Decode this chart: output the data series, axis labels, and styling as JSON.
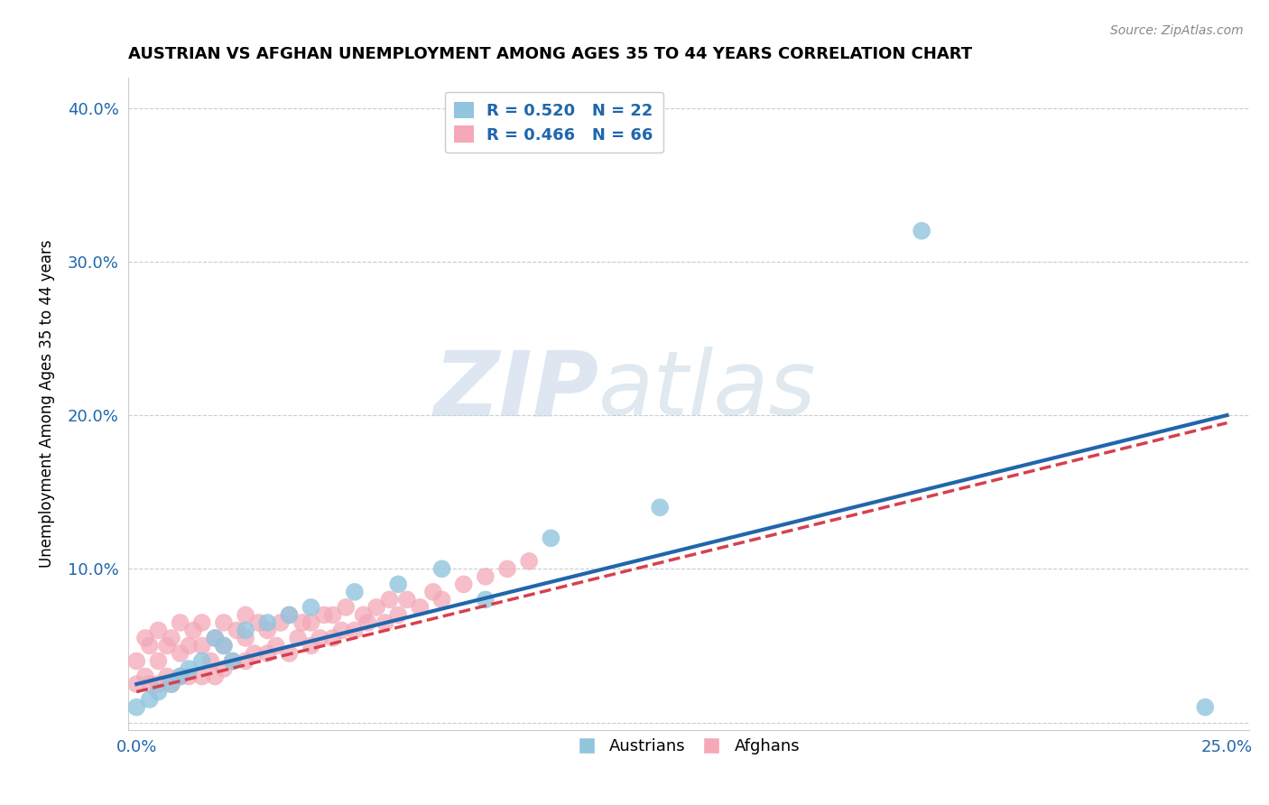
{
  "title": "AUSTRIAN VS AFGHAN UNEMPLOYMENT AMONG AGES 35 TO 44 YEARS CORRELATION CHART",
  "source": "Source: ZipAtlas.com",
  "ylabel": "Unemployment Among Ages 35 to 44 years",
  "xlim": [
    -0.002,
    0.255
  ],
  "ylim": [
    -0.005,
    0.42
  ],
  "xticks": [
    0.0,
    0.05,
    0.1,
    0.15,
    0.2,
    0.25
  ],
  "xticklabels": [
    "0.0%",
    "",
    "",
    "",
    "",
    "25.0%"
  ],
  "yticks": [
    0.0,
    0.1,
    0.2,
    0.3,
    0.4
  ],
  "yticklabels": [
    "",
    "10.0%",
    "20.0%",
    "30.0%",
    "40.0%"
  ],
  "legend_r_austrians": "R = 0.520",
  "legend_n_austrians": "N = 22",
  "legend_r_afghans": "R = 0.466",
  "legend_n_afghans": "N = 66",
  "color_austrians": "#92c5de",
  "color_afghans": "#f4a8b8",
  "trendline_color_austrians": "#2166ac",
  "trendline_color_afghans": "#d6404e",
  "watermark_zip": "ZIP",
  "watermark_atlas": "atlas",
  "austrians_x": [
    0.0,
    0.003,
    0.005,
    0.008,
    0.01,
    0.012,
    0.015,
    0.018,
    0.02,
    0.022,
    0.025,
    0.03,
    0.035,
    0.04,
    0.05,
    0.06,
    0.07,
    0.08,
    0.095,
    0.12,
    0.18,
    0.245
  ],
  "austrians_y": [
    0.01,
    0.015,
    0.02,
    0.025,
    0.03,
    0.035,
    0.04,
    0.055,
    0.05,
    0.04,
    0.06,
    0.065,
    0.07,
    0.075,
    0.085,
    0.09,
    0.1,
    0.08,
    0.12,
    0.14,
    0.32,
    0.01
  ],
  "afghans_x": [
    0.0,
    0.0,
    0.002,
    0.002,
    0.003,
    0.003,
    0.005,
    0.005,
    0.005,
    0.007,
    0.007,
    0.008,
    0.008,
    0.01,
    0.01,
    0.01,
    0.012,
    0.012,
    0.013,
    0.015,
    0.015,
    0.015,
    0.017,
    0.018,
    0.018,
    0.02,
    0.02,
    0.02,
    0.022,
    0.023,
    0.025,
    0.025,
    0.025,
    0.027,
    0.028,
    0.03,
    0.03,
    0.032,
    0.033,
    0.035,
    0.035,
    0.037,
    0.038,
    0.04,
    0.04,
    0.042,
    0.043,
    0.045,
    0.045,
    0.047,
    0.048,
    0.05,
    0.052,
    0.053,
    0.055,
    0.057,
    0.058,
    0.06,
    0.062,
    0.065,
    0.068,
    0.07,
    0.075,
    0.08,
    0.085,
    0.09
  ],
  "afghans_y": [
    0.025,
    0.04,
    0.03,
    0.055,
    0.025,
    0.05,
    0.025,
    0.04,
    0.06,
    0.03,
    0.05,
    0.025,
    0.055,
    0.03,
    0.045,
    0.065,
    0.03,
    0.05,
    0.06,
    0.03,
    0.05,
    0.065,
    0.04,
    0.03,
    0.055,
    0.035,
    0.05,
    0.065,
    0.04,
    0.06,
    0.04,
    0.055,
    0.07,
    0.045,
    0.065,
    0.045,
    0.06,
    0.05,
    0.065,
    0.045,
    0.07,
    0.055,
    0.065,
    0.05,
    0.065,
    0.055,
    0.07,
    0.055,
    0.07,
    0.06,
    0.075,
    0.06,
    0.07,
    0.065,
    0.075,
    0.065,
    0.08,
    0.07,
    0.08,
    0.075,
    0.085,
    0.08,
    0.09,
    0.095,
    0.1,
    0.105
  ],
  "trendline_aus_x0": 0.0,
  "trendline_aus_y0": 0.025,
  "trendline_aus_x1": 0.25,
  "trendline_aus_y1": 0.2,
  "trendline_afg_x0": 0.0,
  "trendline_afg_y0": 0.02,
  "trendline_afg_x1": 0.25,
  "trendline_afg_y1": 0.195
}
